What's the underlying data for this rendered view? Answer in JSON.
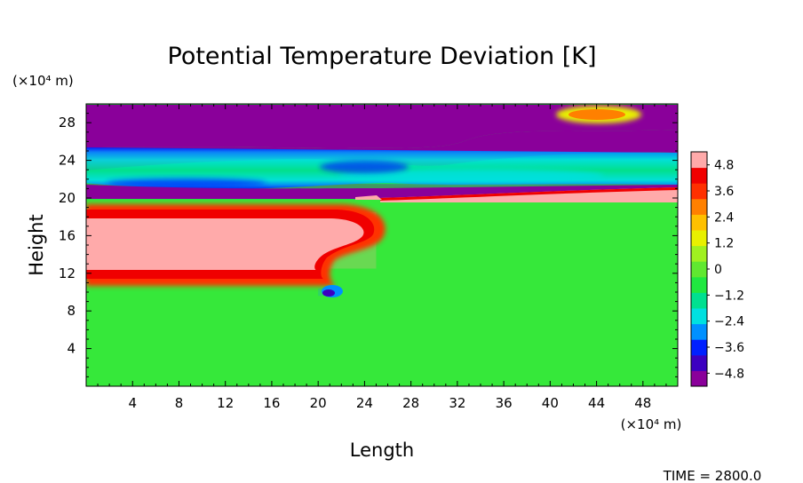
{
  "chart_data": {
    "type": "heatmap",
    "title": "Potential Temperature Deviation [K]",
    "xlabel": "Length",
    "ylabel": "Height",
    "x_unit": "(×10⁴ m)",
    "y_unit": "(×10⁴ m)",
    "xlim": [
      0,
      51
    ],
    "ylim": [
      0,
      30
    ],
    "x_ticks": [
      4,
      8,
      12,
      16,
      20,
      24,
      28,
      32,
      36,
      40,
      44,
      48
    ],
    "y_ticks": [
      4,
      8,
      12,
      16,
      20,
      24,
      28
    ],
    "colorbar": {
      "min": -5.4,
      "max": 5.4,
      "ticks": [
        "4.8",
        "3.6",
        "2.4",
        "1.2",
        "0",
        "−1.2",
        "−2.4",
        "−3.6",
        "−4.8"
      ],
      "tick_values": [
        4.8,
        3.6,
        2.4,
        1.2,
        0,
        -1.2,
        -2.4,
        -3.6,
        -4.8
      ],
      "colors": [
        "#8a009a",
        "#3c00c0",
        "#0020ff",
        "#0090ff",
        "#00e0e0",
        "#00e090",
        "#20e840",
        "#60e830",
        "#a0f020",
        "#e8f000",
        "#ffc000",
        "#ff8000",
        "#ff3000",
        "#f00000",
        "#ffaaaa"
      ]
    },
    "grid": false,
    "legend": "colorbar-right",
    "regions": [
      {
        "value": -5.2,
        "x": [
          0,
          51
        ],
        "y": [
          25.1,
          29.8
        ]
      },
      {
        "value": 4.2,
        "x": [
          42.5,
          48.5
        ],
        "y": [
          28.3,
          29.5
        ]
      },
      {
        "value": -1.8,
        "x": [
          0,
          51
        ],
        "y": [
          21.5,
          25.0
        ]
      },
      {
        "value": -5.2,
        "x": [
          0,
          51
        ],
        "y": [
          20.3,
          21.5
        ]
      },
      {
        "value": 5.0,
        "x": [
          25,
          51
        ],
        "y": [
          19.8,
          21.0
        ]
      },
      {
        "value": 5.4,
        "x": [
          0,
          25
        ],
        "y": [
          12.5,
          18.5
        ]
      },
      {
        "value": -3.0,
        "x": [
          20.0,
          21.5
        ],
        "y": [
          9.6,
          10.4
        ]
      },
      {
        "value": 0.0,
        "x": [
          0,
          51
        ],
        "y": [
          0,
          19.8
        ]
      }
    ]
  },
  "footer": {
    "time_label": "TIME",
    "time_value": "2800.0",
    "time_text": "TIME = 2800.0"
  }
}
